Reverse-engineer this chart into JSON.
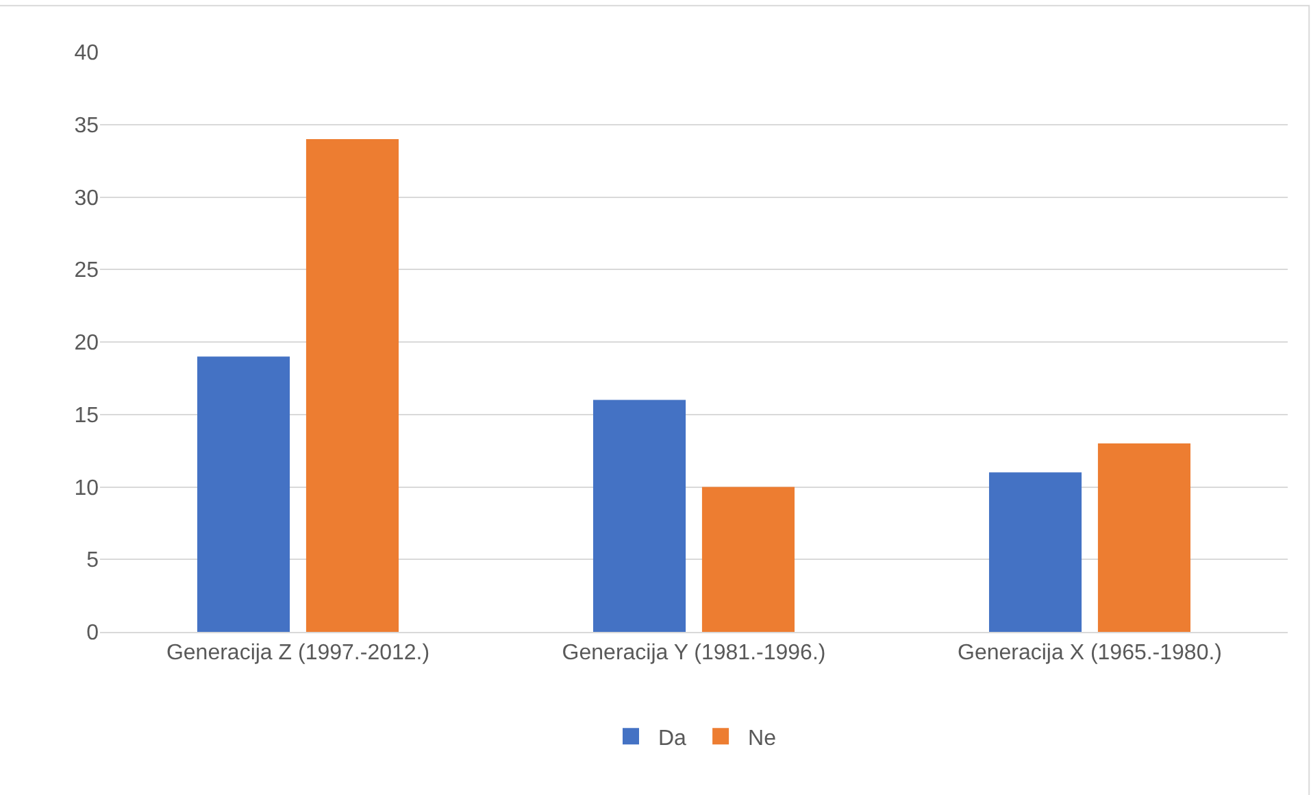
{
  "chart_data": {
    "type": "bar",
    "categories": [
      "Generacija Z (1997.-2012.)",
      "Generacija Y (1981.-1996.)",
      "Generacija X (1965.-1980.)"
    ],
    "series": [
      {
        "name": "Da",
        "color": "#4472c4",
        "values": [
          19,
          16,
          11
        ]
      },
      {
        "name": "Ne",
        "color": "#ed7d31",
        "values": [
          34,
          10,
          13
        ]
      }
    ],
    "ylim": [
      0,
      40
    ],
    "yticks": [
      0,
      5,
      10,
      15,
      20,
      25,
      30,
      35,
      40
    ],
    "grid": "y",
    "legend": "bottom"
  }
}
